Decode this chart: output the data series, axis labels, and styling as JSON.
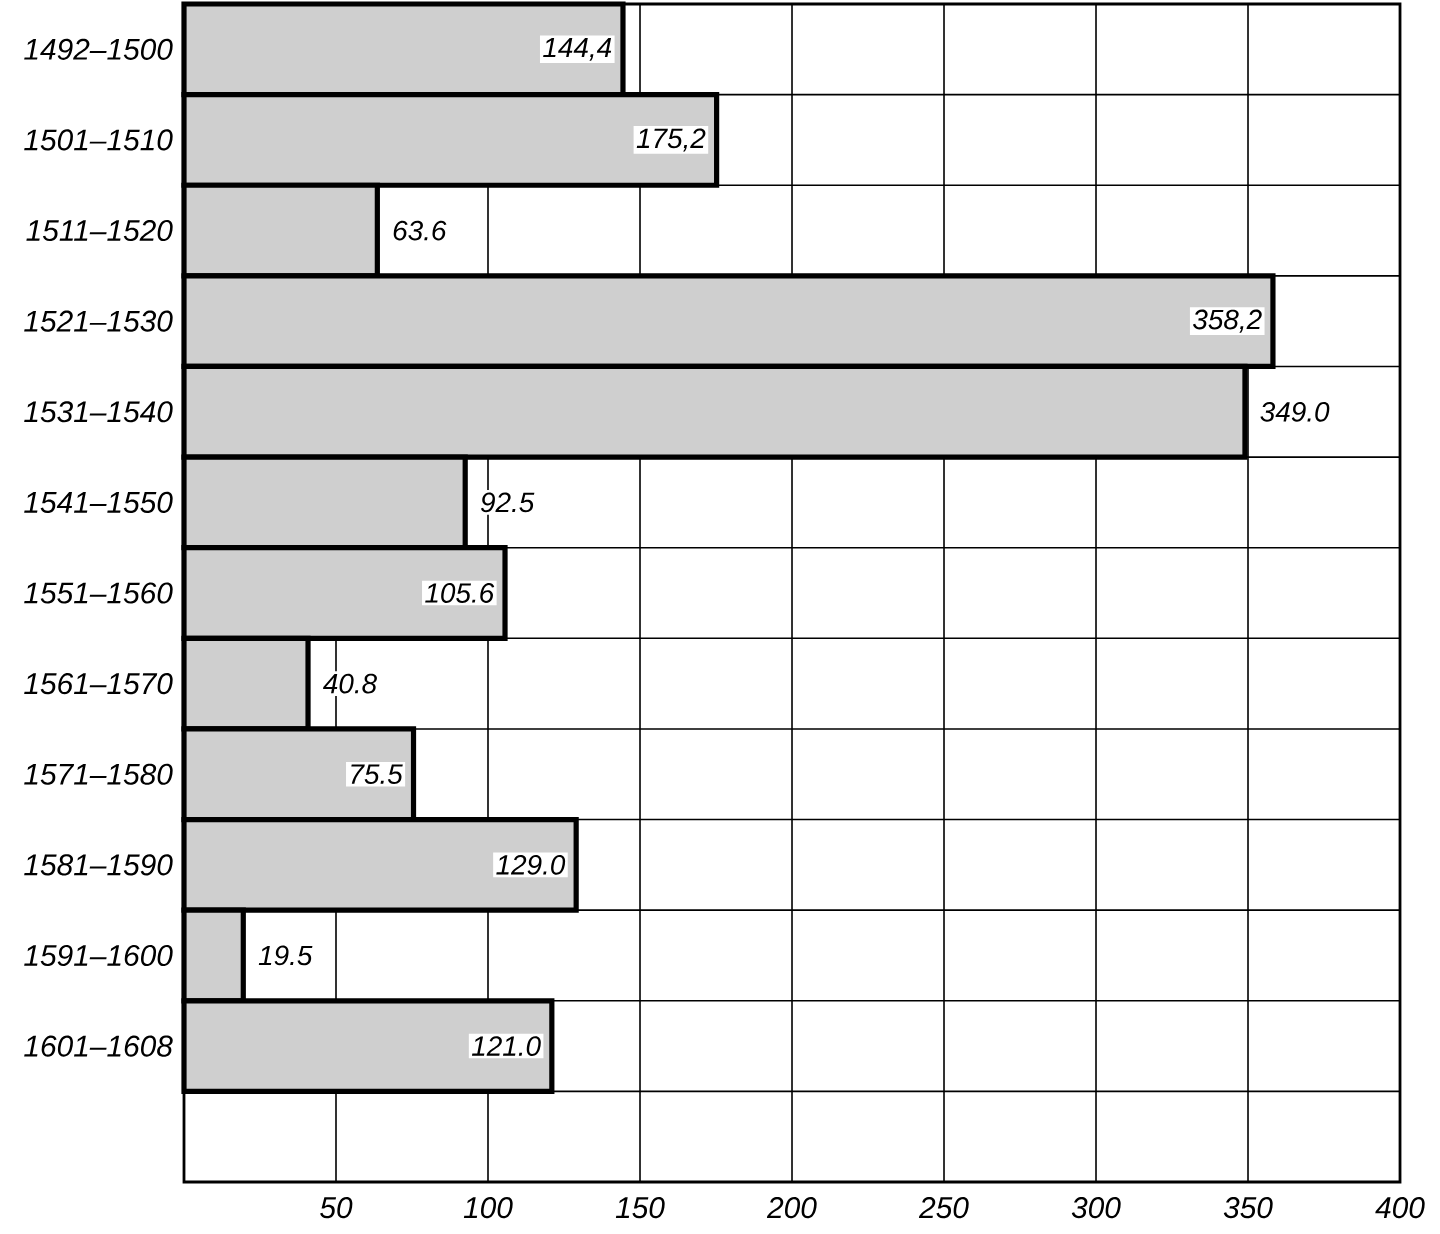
{
  "chart_data": {
    "type": "bar",
    "orientation": "horizontal",
    "categories": [
      "1492–1500",
      "1501–1510",
      "1511–1520",
      "1521–1530",
      "1531–1540",
      "1541–1550",
      "1551–1560",
      "1561–1570",
      "1571–1580",
      "1581–1590",
      "1591–1600",
      "1601–1608",
      null
    ],
    "values": [
      144.4,
      175.2,
      63.6,
      358.2,
      349.0,
      92.5,
      105.6,
      40.8,
      75.5,
      129.0,
      19.5,
      121.0,
      null
    ],
    "value_labels": [
      "144,4",
      "175,2",
      "63.6",
      "358,2",
      "349.0",
      "92.5",
      "105.6",
      "40.8",
      "75.5",
      "129.0",
      "19.5",
      "121.0",
      null
    ],
    "color": "#cfcfcf",
    "xlim": [
      0,
      400
    ],
    "xticks": [
      50,
      100,
      150,
      200,
      250,
      300,
      350,
      400
    ],
    "grid": true
  }
}
